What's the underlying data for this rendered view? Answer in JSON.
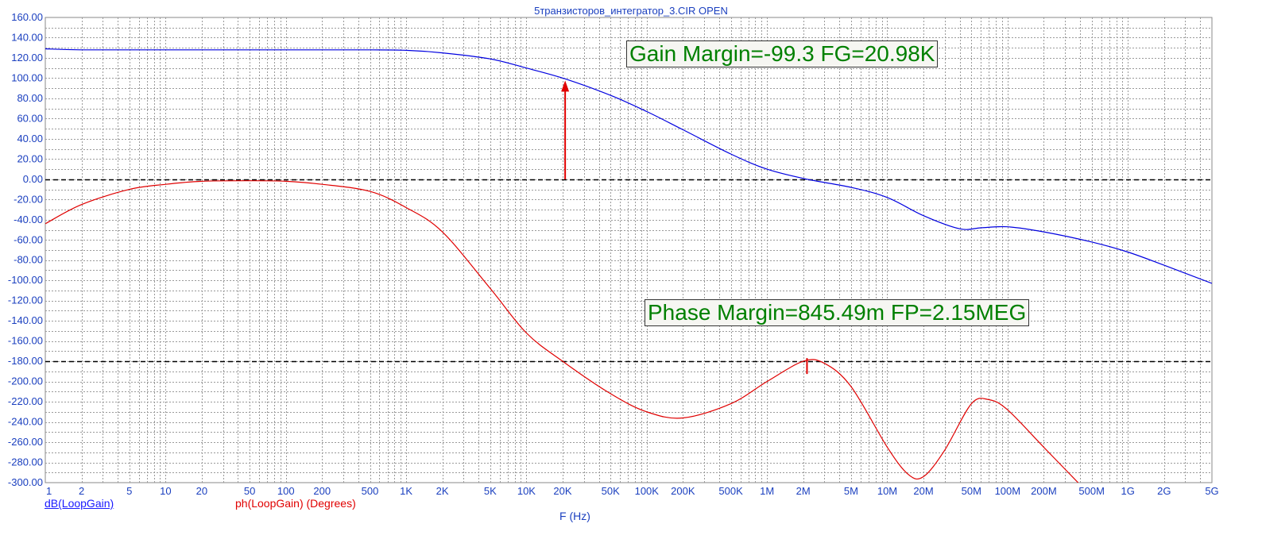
{
  "title": "5транзисторов_интегратор_3.CIR OPEN",
  "legend": {
    "db": "dB(LoopGain)",
    "ph": "ph(LoopGain) (Degrees)"
  },
  "annotations": {
    "gain": "Gain Margin=-99.3 FG=20.98K",
    "phase": "Phase Margin=845.49m FP=2.15MEG"
  },
  "chart_data": {
    "type": "line",
    "title": "5транзисторов_интегратор_3.CIR OPEN",
    "xlabel": "F (Hz)",
    "x_scale": "log",
    "xlim": [
      1,
      5000000000
    ],
    "ylim": [
      -300,
      160
    ],
    "grid": true,
    "x_ticks": [
      {
        "v": 1,
        "label": "1"
      },
      {
        "v": 2,
        "label": "2"
      },
      {
        "v": 5,
        "label": "5"
      },
      {
        "v": 10,
        "label": "10"
      },
      {
        "v": 20,
        "label": "20"
      },
      {
        "v": 50,
        "label": "50"
      },
      {
        "v": 100,
        "label": "100"
      },
      {
        "v": 200,
        "label": "200"
      },
      {
        "v": 500,
        "label": "500"
      },
      {
        "v": 1000,
        "label": "1K"
      },
      {
        "v": 2000,
        "label": "2K"
      },
      {
        "v": 5000,
        "label": "5K"
      },
      {
        "v": 10000,
        "label": "10K"
      },
      {
        "v": 20000,
        "label": "20K"
      },
      {
        "v": 50000,
        "label": "50K"
      },
      {
        "v": 100000,
        "label": "100K"
      },
      {
        "v": 200000,
        "label": "200K"
      },
      {
        "v": 500000,
        "label": "500K"
      },
      {
        "v": 1000000,
        "label": "1M"
      },
      {
        "v": 2000000,
        "label": "2M"
      },
      {
        "v": 5000000,
        "label": "5M"
      },
      {
        "v": 10000000,
        "label": "10M"
      },
      {
        "v": 20000000,
        "label": "20M"
      },
      {
        "v": 50000000,
        "label": "50M"
      },
      {
        "v": 100000000,
        "label": "100M"
      },
      {
        "v": 200000000,
        "label": "200M"
      },
      {
        "v": 500000000,
        "label": "500M"
      },
      {
        "v": 1000000000,
        "label": "1G"
      },
      {
        "v": 2000000000,
        "label": "2G"
      },
      {
        "v": 5000000000,
        "label": "5G"
      }
    ],
    "y_ticks": [
      {
        "v": 160,
        "label": "160.00"
      },
      {
        "v": 140,
        "label": "140.00"
      },
      {
        "v": 120,
        "label": "120.00"
      },
      {
        "v": 100,
        "label": "100.00"
      },
      {
        "v": 80,
        "label": "80.00"
      },
      {
        "v": 60,
        "label": "60.00"
      },
      {
        "v": 40,
        "label": "40.00"
      },
      {
        "v": 20,
        "label": "20.00"
      },
      {
        "v": 0,
        "label": "0.00"
      },
      {
        "v": -20,
        "label": "-20.00"
      },
      {
        "v": -40,
        "label": "-40.00"
      },
      {
        "v": -60,
        "label": "-60.00"
      },
      {
        "v": -80,
        "label": "-80.00"
      },
      {
        "v": -100,
        "label": "-100.00"
      },
      {
        "v": -120,
        "label": "-120.00"
      },
      {
        "v": -140,
        "label": "-140.00"
      },
      {
        "v": -160,
        "label": "-160.00"
      },
      {
        "v": -180,
        "label": "-180.00"
      },
      {
        "v": -200,
        "label": "-200.00"
      },
      {
        "v": -220,
        "label": "-220.00"
      },
      {
        "v": -240,
        "label": "-240.00"
      },
      {
        "v": -260,
        "label": "-260.00"
      },
      {
        "v": -280,
        "label": "-280.00"
      },
      {
        "v": -300,
        "label": "-300.00"
      }
    ],
    "reference_lines": [
      0,
      -180
    ],
    "series": [
      {
        "name": "dB(LoopGain)",
        "color": "#0000e0",
        "points": [
          [
            1,
            129
          ],
          [
            2,
            128
          ],
          [
            10,
            128
          ],
          [
            100,
            128
          ],
          [
            500,
            128
          ],
          [
            1000,
            127.5
          ],
          [
            2000,
            125
          ],
          [
            5000,
            119
          ],
          [
            10000,
            110
          ],
          [
            20980,
            99.3
          ],
          [
            50000,
            83
          ],
          [
            100000,
            67
          ],
          [
            200000,
            49
          ],
          [
            500000,
            25
          ],
          [
            1000000,
            10
          ],
          [
            2150000,
            0
          ],
          [
            5000000,
            -8
          ],
          [
            10000000,
            -18
          ],
          [
            20000000,
            -36
          ],
          [
            40000000,
            -49
          ],
          [
            60000000,
            -48
          ],
          [
            100000000,
            -47
          ],
          [
            200000000,
            -52
          ],
          [
            500000000,
            -62
          ],
          [
            1000000000,
            -72
          ],
          [
            2000000000,
            -85
          ],
          [
            5000000000,
            -103
          ]
        ]
      },
      {
        "name": "ph(LoopGain) (Degrees)",
        "color": "#e00000",
        "points": [
          [
            1,
            -44
          ],
          [
            2,
            -25
          ],
          [
            5,
            -10
          ],
          [
            10,
            -5
          ],
          [
            20,
            -2
          ],
          [
            50,
            -1.5
          ],
          [
            100,
            -2
          ],
          [
            200,
            -5
          ],
          [
            500,
            -12
          ],
          [
            1000,
            -28
          ],
          [
            2000,
            -52
          ],
          [
            5000,
            -108
          ],
          [
            10000,
            -152
          ],
          [
            20000,
            -180
          ],
          [
            50000,
            -212
          ],
          [
            100000,
            -230
          ],
          [
            200000,
            -236
          ],
          [
            500000,
            -222
          ],
          [
            1000000,
            -200
          ],
          [
            2000000,
            -180
          ],
          [
            3000000,
            -182
          ],
          [
            5000000,
            -205
          ],
          [
            10000000,
            -265
          ],
          [
            15000000,
            -292
          ],
          [
            20000000,
            -294
          ],
          [
            30000000,
            -268
          ],
          [
            50000000,
            -222
          ],
          [
            70000000,
            -218
          ],
          [
            100000000,
            -228
          ],
          [
            200000000,
            -265
          ],
          [
            400000000,
            -302
          ]
        ]
      }
    ],
    "markers": [
      {
        "type": "gain_margin_arrow",
        "x": 20980,
        "y_from": 0,
        "y_to": 99.3
      },
      {
        "type": "phase_margin_tick",
        "x": 2150000,
        "y": -180
      }
    ]
  }
}
